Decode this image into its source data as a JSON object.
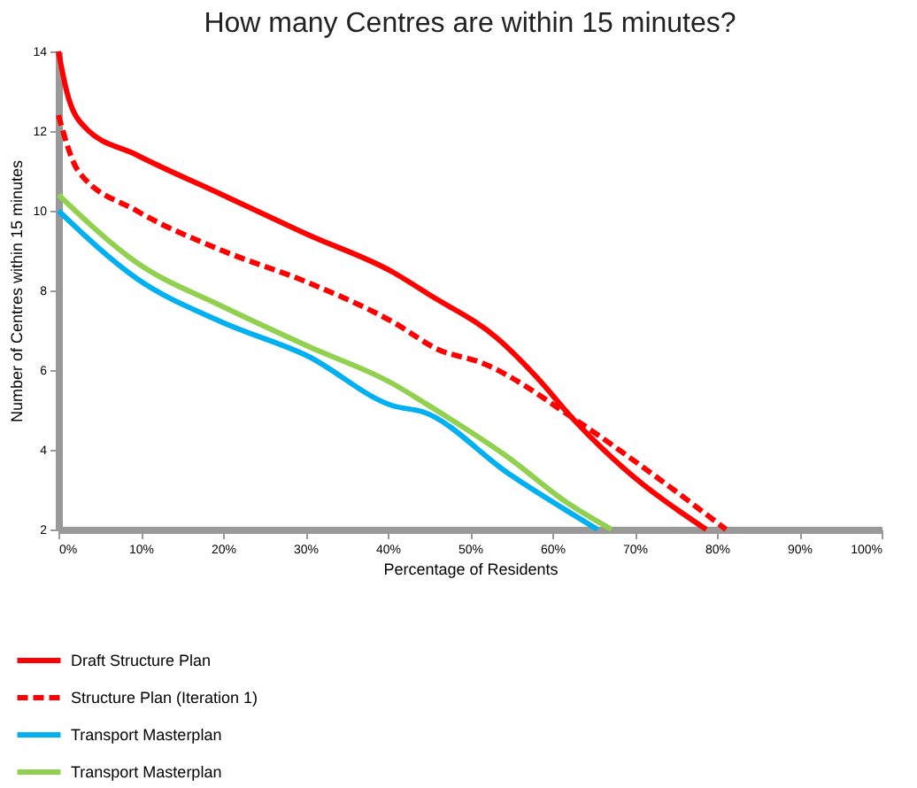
{
  "chart_data": {
    "type": "line",
    "title": "How many Centres are within 15 minutes?",
    "xlabel": "Percentage of Residents",
    "ylabel": "Number of Centres within 15 minutes",
    "xlim": [
      0,
      100
    ],
    "ylim": [
      2,
      14
    ],
    "xticks": [
      {
        "value": 0,
        "label": "0%"
      },
      {
        "value": 10,
        "label": "10%"
      },
      {
        "value": 20,
        "label": "20%"
      },
      {
        "value": 30,
        "label": "30%"
      },
      {
        "value": 40,
        "label": "40%"
      },
      {
        "value": 50,
        "label": "50%"
      },
      {
        "value": 60,
        "label": "60%"
      },
      {
        "value": 70,
        "label": "70%"
      },
      {
        "value": 80,
        "label": "80%"
      },
      {
        "value": 90,
        "label": "90%"
      },
      {
        "value": 100,
        "label": "100%"
      }
    ],
    "yticks": [
      2,
      4,
      6,
      8,
      10,
      12,
      14
    ],
    "grid": false,
    "legend": "bottom left",
    "marker": "none",
    "series": [
      {
        "name": "Draft Structure Plan",
        "color": "#ff0000",
        "line_style": "solid",
        "x": [
          0,
          1,
          3.2,
          9.5,
          19.9,
          30.3,
          40.7,
          45,
          53.3,
          58.2,
          62.4,
          68.6,
          78.7
        ],
        "values": [
          14,
          13,
          12.1,
          11.4,
          10.4,
          9.4,
          8.45,
          7.9,
          6.8,
          5.8,
          4.8,
          3.55,
          2
        ]
      },
      {
        "name": "Structure Plan (Iteration 1)",
        "color": "#ff0000",
        "line_style": "dashed",
        "x": [
          0,
          2.4,
          9.5,
          19.9,
          30.3,
          40.7,
          46.3,
          51.2,
          63.2,
          72.1,
          81.1
        ],
        "values": [
          12.4,
          11,
          10,
          9,
          8.2,
          7.2,
          6.5,
          6.2,
          4.7,
          3.4,
          2
        ]
      },
      {
        "name": "Transport Masterplan",
        "color": "#00b0f0",
        "line_style": "solid",
        "x": [
          0,
          9.5,
          19.9,
          30.3,
          40.7,
          44.3,
          54.7,
          65.5
        ],
        "values": [
          10,
          8.3,
          7.2,
          6.35,
          5.1,
          4.95,
          3.4,
          2
        ]
      },
      {
        "name": "Transport Masterplan",
        "color": "#92d050",
        "line_style": "solid",
        "x": [
          0,
          9.5,
          19.9,
          30.3,
          40.7,
          44.3,
          54.7,
          61.6,
          67.2
        ],
        "values": [
          10.4,
          8.7,
          7.6,
          6.6,
          5.65,
          5.2,
          3.8,
          2.7,
          2
        ]
      }
    ]
  }
}
